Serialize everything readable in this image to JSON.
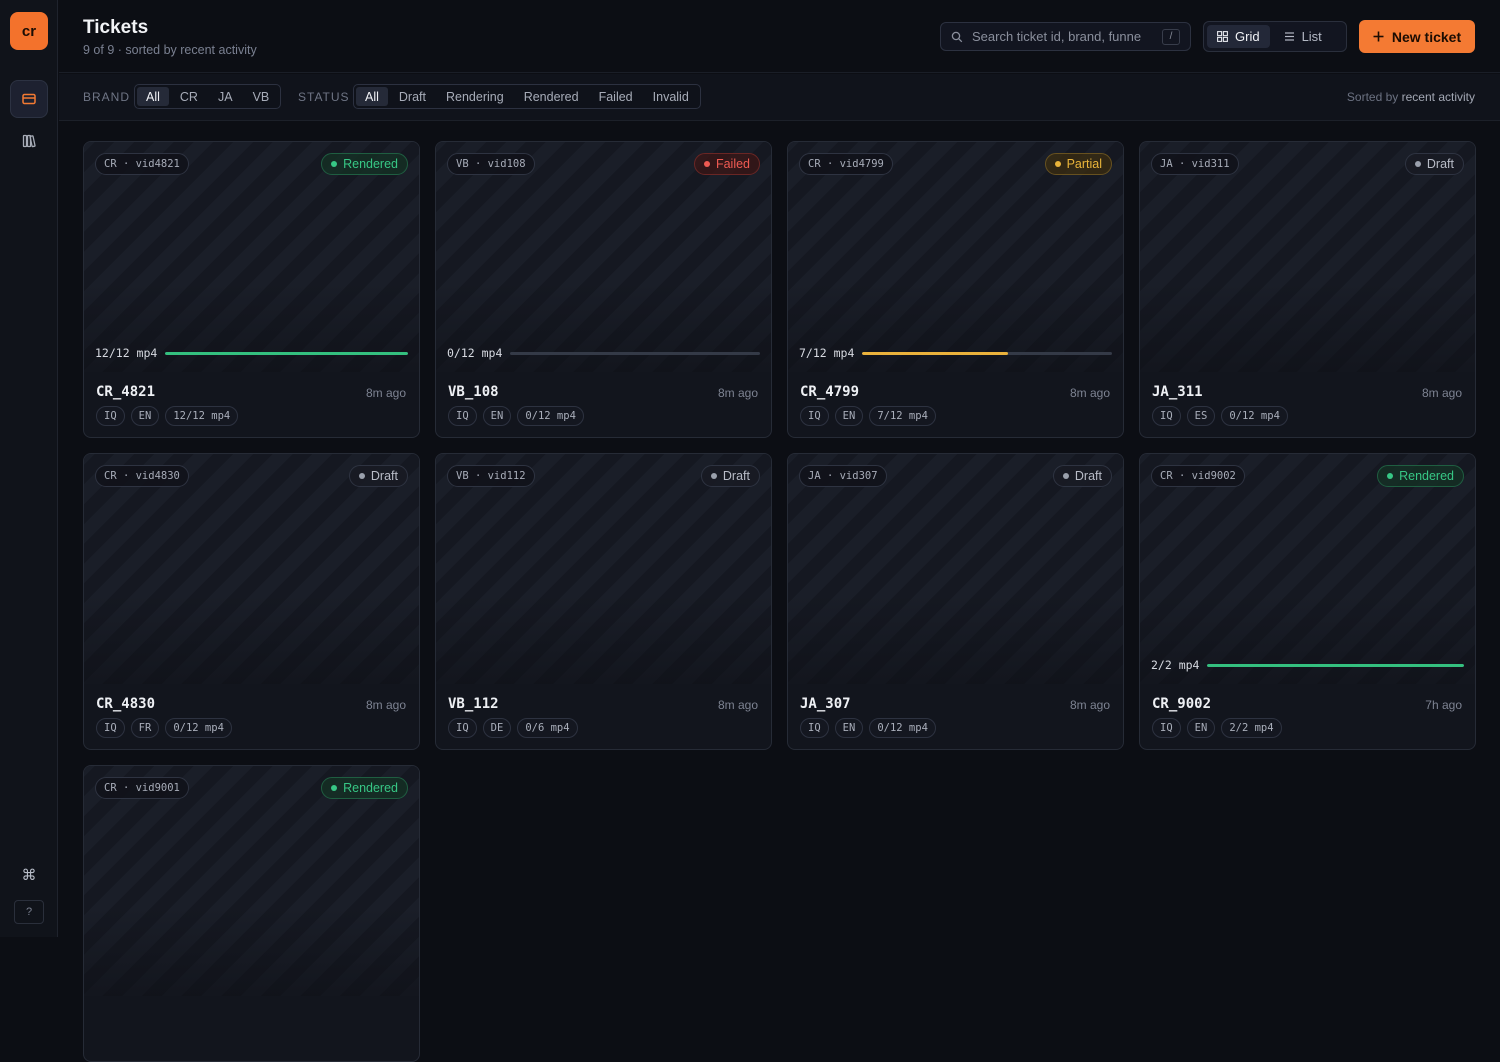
{
  "sidebar": {
    "logo": "cr",
    "items": [
      {
        "name": "tickets-nav",
        "icon": "ticket-icon"
      },
      {
        "name": "library-nav",
        "icon": "books-icon"
      }
    ],
    "cmd_glyph": "⌘",
    "help_glyph": "?"
  },
  "header": {
    "title": "Tickets",
    "subtitle": "9 of 9 · sorted by recent activity",
    "search_placeholder": "Search ticket id, brand, funne",
    "search_shortcut": "/",
    "view_grid": "Grid",
    "view_list": "List",
    "new_ticket": "New ticket"
  },
  "filters": {
    "brand_label": "BRAND",
    "brand_options": [
      "All",
      "CR",
      "JA",
      "VB"
    ],
    "status_label": "STATUS",
    "status_options": [
      "All",
      "Draft",
      "Rendering",
      "Rendered",
      "Failed",
      "Invalid"
    ],
    "sorted_prefix": "Sorted by",
    "sorted_value": "recent activity"
  },
  "tickets": [
    {
      "id_tag": "CR · vid4821",
      "status": "Rendered",
      "status_kind": "rendered",
      "progress_label": "12/12 mp4",
      "progress": 1.0,
      "progress_color": "green",
      "show_progress": true,
      "title": "CR_4821",
      "time": "8m ago",
      "chips": [
        "IQ",
        "EN",
        "12/12 mp4"
      ]
    },
    {
      "id_tag": "VB · vid108",
      "status": "Failed",
      "status_kind": "failed",
      "progress_label": "0/12 mp4",
      "progress": 0.0,
      "progress_color": "gray",
      "show_progress": true,
      "title": "VB_108",
      "time": "8m ago",
      "chips": [
        "IQ",
        "EN",
        "0/12 mp4"
      ]
    },
    {
      "id_tag": "CR · vid4799",
      "status": "Partial",
      "status_kind": "partial",
      "progress_label": "7/12 mp4",
      "progress": 0.5833,
      "progress_color": "amber",
      "show_progress": true,
      "title": "CR_4799",
      "time": "8m ago",
      "chips": [
        "IQ",
        "EN",
        "7/12 mp4"
      ]
    },
    {
      "id_tag": "JA · vid311",
      "status": "Draft",
      "status_kind": "draft",
      "progress_label": "",
      "progress": 0,
      "progress_color": "gray",
      "show_progress": false,
      "title": "JA_311",
      "time": "8m ago",
      "chips": [
        "IQ",
        "ES",
        "0/12 mp4"
      ]
    },
    {
      "id_tag": "CR · vid4830",
      "status": "Draft",
      "status_kind": "draft",
      "progress_label": "",
      "progress": 0,
      "progress_color": "gray",
      "show_progress": false,
      "title": "CR_4830",
      "time": "8m ago",
      "chips": [
        "IQ",
        "FR",
        "0/12 mp4"
      ]
    },
    {
      "id_tag": "VB · vid112",
      "status": "Draft",
      "status_kind": "draft",
      "progress_label": "",
      "progress": 0,
      "progress_color": "gray",
      "show_progress": false,
      "title": "VB_112",
      "time": "8m ago",
      "chips": [
        "IQ",
        "DE",
        "0/6 mp4"
      ]
    },
    {
      "id_tag": "JA · vid307",
      "status": "Draft",
      "status_kind": "draft",
      "progress_label": "",
      "progress": 0,
      "progress_color": "gray",
      "show_progress": false,
      "title": "JA_307",
      "time": "8m ago",
      "chips": [
        "IQ",
        "EN",
        "0/12 mp4"
      ]
    },
    {
      "id_tag": "CR · vid9002",
      "status": "Rendered",
      "status_kind": "rendered",
      "progress_label": "2/2 mp4",
      "progress": 1.0,
      "progress_color": "green",
      "show_progress": true,
      "title": "CR_9002",
      "time": "7h ago",
      "chips": [
        "IQ",
        "EN",
        "2/2 mp4"
      ]
    },
    {
      "id_tag": "CR · vid9001",
      "status": "Rendered",
      "status_kind": "rendered",
      "progress_label": "",
      "progress": 0,
      "progress_color": "gray",
      "show_progress": false,
      "title": "",
      "time": "",
      "chips": []
    }
  ],
  "colors": {
    "accent": "#f47a33",
    "rendered": "#37c785",
    "failed": "#ef5a52",
    "partial": "#e9b43a"
  }
}
